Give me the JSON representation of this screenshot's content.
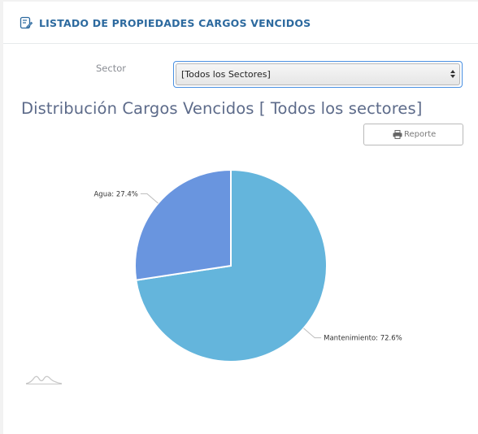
{
  "header": {
    "title": "LISTADO DE PROPIEDADES CARGOS VENCIDOS",
    "icon": "edit-document-icon",
    "title_color": "#2d6a9f"
  },
  "filter": {
    "label": "Sector",
    "selected_value": "[Todos los Sectores]"
  },
  "report_button": {
    "label": "Reporte",
    "icon": "print-icon"
  },
  "chart_data": {
    "type": "pie",
    "title": "Distribución Cargos Vencidos [ Todos los sectores]",
    "slices": [
      {
        "label": "Mantenimiento: 72.6%",
        "name": "Mantenimiento",
        "value": 72.6,
        "color": "#64b5dc"
      },
      {
        "label": "Agua: 27.4%",
        "name": "Agua",
        "value": 27.4,
        "color": "#6995df"
      }
    ]
  },
  "colors": {
    "title": "#5d6b8a",
    "accent": "#4a90e2"
  }
}
